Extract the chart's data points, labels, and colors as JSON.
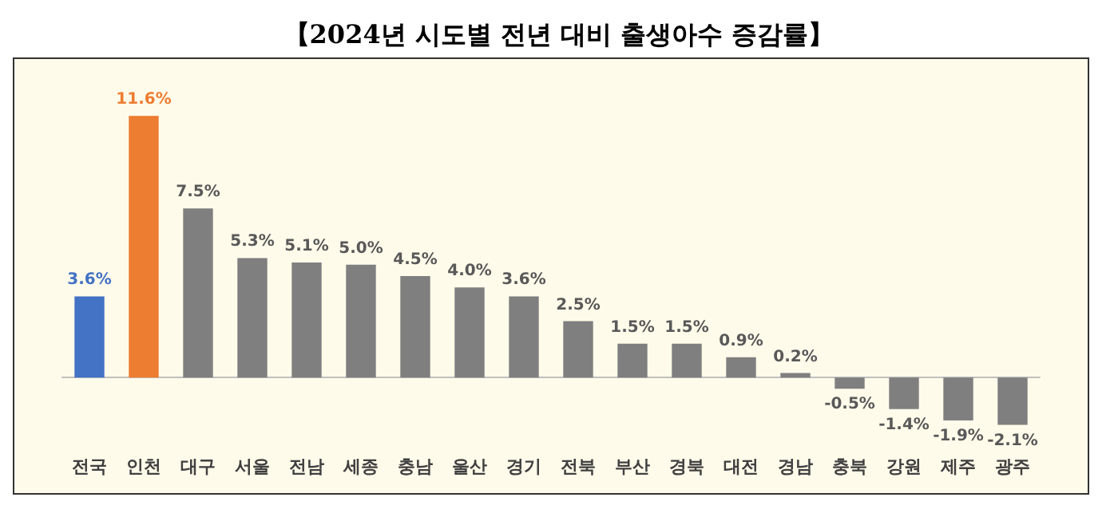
{
  "chart_data": {
    "type": "bar",
    "title": "【2024년 시도별 전년 대비 출생아수 증감률】",
    "categories": [
      "전국",
      "인천",
      "대구",
      "서울",
      "전남",
      "세종",
      "충남",
      "울산",
      "경기",
      "전북",
      "부산",
      "경북",
      "대전",
      "경남",
      "충북",
      "강원",
      "제주",
      "광주"
    ],
    "values": [
      3.6,
      11.6,
      7.5,
      5.3,
      5.1,
      5.0,
      4.5,
      4.0,
      3.6,
      2.5,
      1.5,
      1.5,
      0.9,
      0.2,
      -0.5,
      -1.4,
      -1.9,
      -2.1
    ],
    "value_labels": [
      "3.6%",
      "11.6%",
      "7.5%",
      "5.3%",
      "5.1%",
      "5.0%",
      "4.5%",
      "4.0%",
      "3.6%",
      "2.5%",
      "1.5%",
      "1.5%",
      "0.9%",
      "0.2%",
      "-0.5%",
      "-1.4%",
      "-1.9%",
      "-2.1%"
    ],
    "colors": [
      "#4472c4",
      "#ed7d31",
      "#7f7f7f",
      "#7f7f7f",
      "#7f7f7f",
      "#7f7f7f",
      "#7f7f7f",
      "#7f7f7f",
      "#7f7f7f",
      "#7f7f7f",
      "#7f7f7f",
      "#7f7f7f",
      "#7f7f7f",
      "#7f7f7f",
      "#7f7f7f",
      "#7f7f7f",
      "#7f7f7f",
      "#7f7f7f"
    ],
    "orientation": "vertical"
  }
}
